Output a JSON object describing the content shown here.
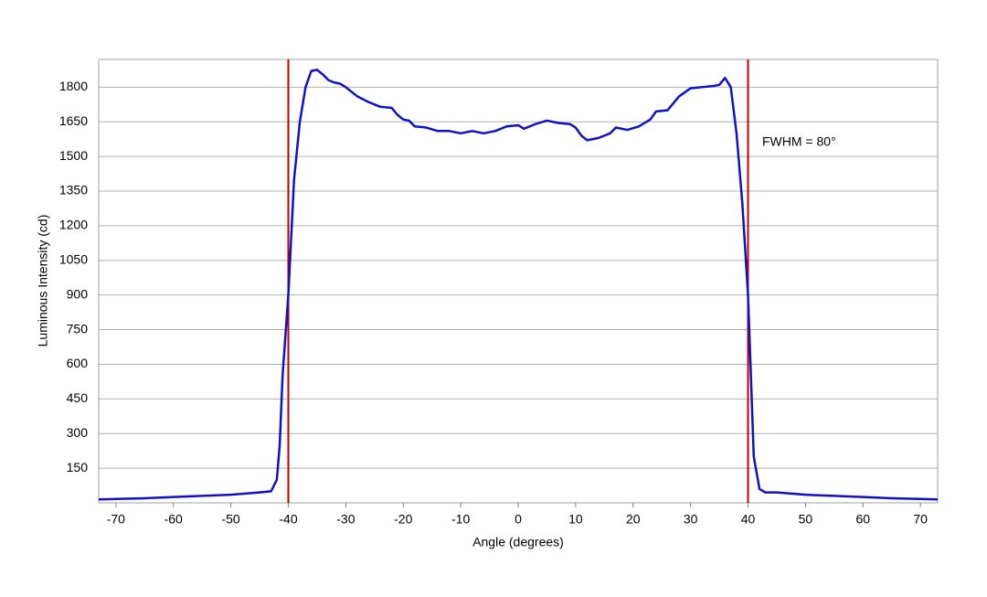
{
  "chart_data": {
    "type": "line",
    "xlabel": "Angle (degrees)",
    "ylabel": "Luminous Intensity (cd)",
    "annotation": "FWHM = 80°",
    "x": [
      -73,
      -65,
      -60,
      -55,
      -50,
      -45,
      -43,
      -42,
      -41.5,
      -41,
      -40,
      -39,
      -38,
      -37,
      -36,
      -35,
      -34,
      -33,
      -32,
      -31,
      -30,
      -28,
      -26,
      -24,
      -22,
      -21,
      -20,
      -19,
      -18,
      -16,
      -14,
      -12,
      -10,
      -8,
      -6,
      -4,
      -2,
      0,
      1,
      3,
      5,
      7,
      9,
      10,
      11,
      12,
      14,
      16,
      17,
      19,
      21,
      23,
      24,
      26,
      28,
      30,
      32,
      34,
      35,
      36,
      37,
      38,
      39,
      40,
      41,
      42,
      43,
      45,
      50,
      55,
      60,
      65,
      73
    ],
    "series": [
      {
        "name": "Luminous Intensity",
        "color": "#1010c8",
        "values": [
          15,
          20,
          25,
          30,
          35,
          45,
          50,
          100,
          250,
          550,
          900,
          1400,
          1650,
          1800,
          1870,
          1875,
          1855,
          1830,
          1820,
          1815,
          1800,
          1760,
          1735,
          1715,
          1710,
          1680,
          1660,
          1655,
          1630,
          1625,
          1610,
          1610,
          1600,
          1610,
          1600,
          1610,
          1630,
          1635,
          1620,
          1640,
          1655,
          1645,
          1640,
          1625,
          1590,
          1570,
          1580,
          1600,
          1625,
          1615,
          1630,
          1660,
          1695,
          1700,
          1760,
          1795,
          1800,
          1805,
          1810,
          1840,
          1800,
          1600,
          1300,
          900,
          200,
          60,
          45,
          45,
          35,
          30,
          25,
          20,
          15
        ]
      }
    ],
    "vlines": [
      {
        "value": -40,
        "color": "#c00000"
      },
      {
        "value": 40,
        "color": "#c00000"
      }
    ],
    "xlim": [
      -73,
      73
    ],
    "ylim": [
      0,
      1920
    ],
    "xticks": [
      -70,
      -60,
      -50,
      -40,
      -30,
      -20,
      -10,
      0,
      10,
      20,
      30,
      40,
      50,
      60,
      70
    ],
    "yticks": [
      150,
      300,
      450,
      600,
      750,
      900,
      1050,
      1200,
      1350,
      1500,
      1650,
      1800
    ],
    "grid": true
  }
}
